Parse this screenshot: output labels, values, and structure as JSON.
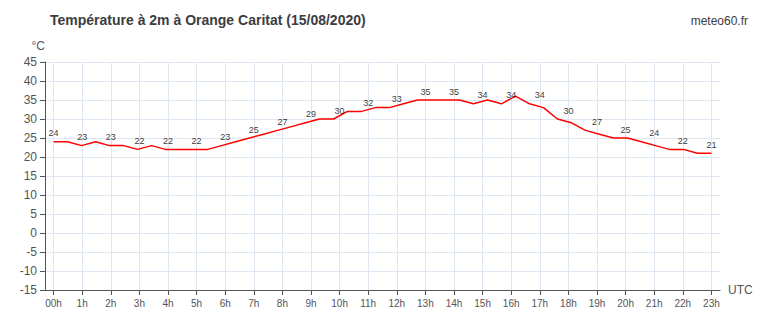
{
  "chart_data": {
    "type": "line",
    "title": "Température à 2m à Orange Caritat (15/08/2020)",
    "ylabel": "°C",
    "xlabel": "UTC",
    "watermark": "meteo60.fr",
    "color": "#ff0000",
    "grid": true,
    "x": [
      0,
      0.489362,
      0.978723,
      1.468085,
      1.957447,
      2.446809,
      2.93617,
      3.425532,
      3.914894,
      4.404255,
      4.893617,
      5.382979,
      5.87234,
      6.361702,
      6.851064,
      7.340426,
      7.829787,
      8.319149,
      8.808511,
      9.297872,
      9.787234,
      10.276596,
      10.765957,
      11.255319,
      11.744681,
      12.234043,
      12.723404,
      13.212766,
      13.702128,
      14.191489,
      14.680851,
      15.170213,
      15.659574,
      16.148936,
      16.638298,
      17.12766,
      17.617021,
      18.106383,
      18.595745,
      19.085106,
      19.574468,
      20.06383,
      20.553191,
      21.042553,
      21.531915,
      22.021277,
      22.510638,
      23
    ],
    "values": [
      24,
      24,
      23,
      24,
      23,
      23,
      22,
      23,
      22,
      22,
      22,
      22,
      23,
      24,
      25,
      26,
      27,
      28,
      29,
      30,
      30,
      32,
      32,
      33,
      33,
      34,
      35,
      35,
      35,
      35,
      34,
      35,
      34,
      36,
      34,
      33,
      30,
      29,
      27,
      26,
      25,
      25,
      24,
      23,
      22,
      22,
      21,
      21
    ],
    "annotations": [
      {
        "x": 0,
        "y": 24,
        "text": "24"
      },
      {
        "x": 1,
        "y": 23,
        "text": "23"
      },
      {
        "x": 2,
        "y": 23,
        "text": "23"
      },
      {
        "x": 3,
        "y": 22,
        "text": "22"
      },
      {
        "x": 4,
        "y": 22,
        "text": "22"
      },
      {
        "x": 5,
        "y": 22,
        "text": "22"
      },
      {
        "x": 6,
        "y": 23,
        "text": "23"
      },
      {
        "x": 7,
        "y": 25,
        "text": "25"
      },
      {
        "x": 8,
        "y": 27,
        "text": "27"
      },
      {
        "x": 9,
        "y": 29,
        "text": "29"
      },
      {
        "x": 10,
        "y": 30,
        "text": "30"
      },
      {
        "x": 11,
        "y": 32,
        "text": "32"
      },
      {
        "x": 12,
        "y": 33,
        "text": "33"
      },
      {
        "x": 13,
        "y": 35,
        "text": "35"
      },
      {
        "x": 14,
        "y": 35,
        "text": "35"
      },
      {
        "x": 15,
        "y": 34,
        "text": "34"
      },
      {
        "x": 16,
        "y": 34,
        "text": "34"
      },
      {
        "x": 17,
        "y": 34,
        "text": "34"
      },
      {
        "x": 18,
        "y": 30,
        "text": "30"
      },
      {
        "x": 19,
        "y": 27,
        "text": "27"
      },
      {
        "x": 20,
        "y": 25,
        "text": "25"
      },
      {
        "x": 21,
        "y": 24,
        "text": "24"
      },
      {
        "x": 22,
        "y": 22,
        "text": "22"
      },
      {
        "x": 23,
        "y": 21,
        "text": "21"
      }
    ],
    "xlim": [
      -0.3,
      23.3
    ],
    "xticks": [
      {
        "value": 0,
        "label": "00h"
      },
      {
        "value": 1,
        "label": "1h"
      },
      {
        "value": 2,
        "label": "2h"
      },
      {
        "value": 3,
        "label": "3h"
      },
      {
        "value": 4,
        "label": "4h"
      },
      {
        "value": 5,
        "label": "5h"
      },
      {
        "value": 6,
        "label": "6h"
      },
      {
        "value": 7,
        "label": "7h"
      },
      {
        "value": 8,
        "label": "8h"
      },
      {
        "value": 9,
        "label": "9h"
      },
      {
        "value": 10,
        "label": "10h"
      },
      {
        "value": 11,
        "label": "11h"
      },
      {
        "value": 12,
        "label": "12h"
      },
      {
        "value": 13,
        "label": "13h"
      },
      {
        "value": 14,
        "label": "14h"
      },
      {
        "value": 15,
        "label": "15h"
      },
      {
        "value": 16,
        "label": "16h"
      },
      {
        "value": 17,
        "label": "17h"
      },
      {
        "value": 18,
        "label": "18h"
      },
      {
        "value": 19,
        "label": "19h"
      },
      {
        "value": 20,
        "label": "20h"
      },
      {
        "value": 21,
        "label": "21h"
      },
      {
        "value": 22,
        "label": "22h"
      },
      {
        "value": 23,
        "label": "23h"
      }
    ],
    "ylim": [
      -15,
      45
    ],
    "yticks": [
      -15,
      -10,
      -5,
      0,
      5,
      10,
      15,
      20,
      25,
      30,
      35,
      40,
      45
    ]
  }
}
